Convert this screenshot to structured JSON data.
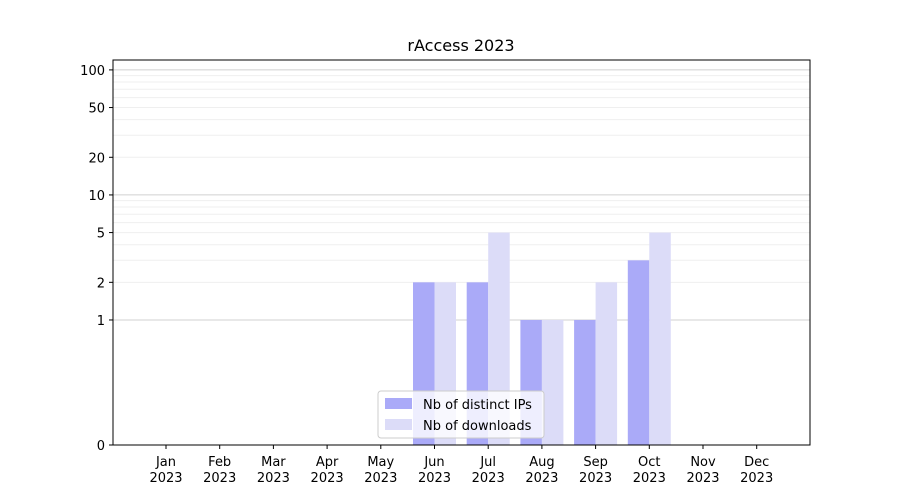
{
  "chart_data": {
    "type": "bar",
    "title": "rAccess 2023",
    "xlabel": "",
    "ylabel": "",
    "yscale": "symlog",
    "ylim": [
      0,
      120
    ],
    "yticks": [
      {
        "value": 0,
        "label": "0"
      },
      {
        "value": 1,
        "label": "1"
      },
      {
        "value": 2,
        "label": "2"
      },
      {
        "value": 5,
        "label": "5"
      },
      {
        "value": 10,
        "label": "10"
      },
      {
        "value": 20,
        "label": "20"
      },
      {
        "value": 50,
        "label": "50"
      },
      {
        "value": 100,
        "label": "100"
      }
    ],
    "categories": [
      {
        "month": "Jan",
        "year": "2023"
      },
      {
        "month": "Feb",
        "year": "2023"
      },
      {
        "month": "Mar",
        "year": "2023"
      },
      {
        "month": "Apr",
        "year": "2023"
      },
      {
        "month": "May",
        "year": "2023"
      },
      {
        "month": "Jun",
        "year": "2023"
      },
      {
        "month": "Jul",
        "year": "2023"
      },
      {
        "month": "Aug",
        "year": "2023"
      },
      {
        "month": "Sep",
        "year": "2023"
      },
      {
        "month": "Oct",
        "year": "2023"
      },
      {
        "month": "Nov",
        "year": "2023"
      },
      {
        "month": "Dec",
        "year": "2023"
      }
    ],
    "series": [
      {
        "name": "Nb of distinct IPs",
        "color": "#aaaaf8",
        "values": [
          0,
          0,
          0,
          0,
          0,
          2,
          2,
          1,
          1,
          3,
          0,
          0
        ]
      },
      {
        "name": "Nb of downloads",
        "color": "#dcdcf8",
        "values": [
          0,
          0,
          0,
          0,
          0,
          2,
          5,
          1,
          2,
          5,
          0,
          0
        ]
      }
    ],
    "grid": true,
    "legend_position": "bottom-center"
  }
}
